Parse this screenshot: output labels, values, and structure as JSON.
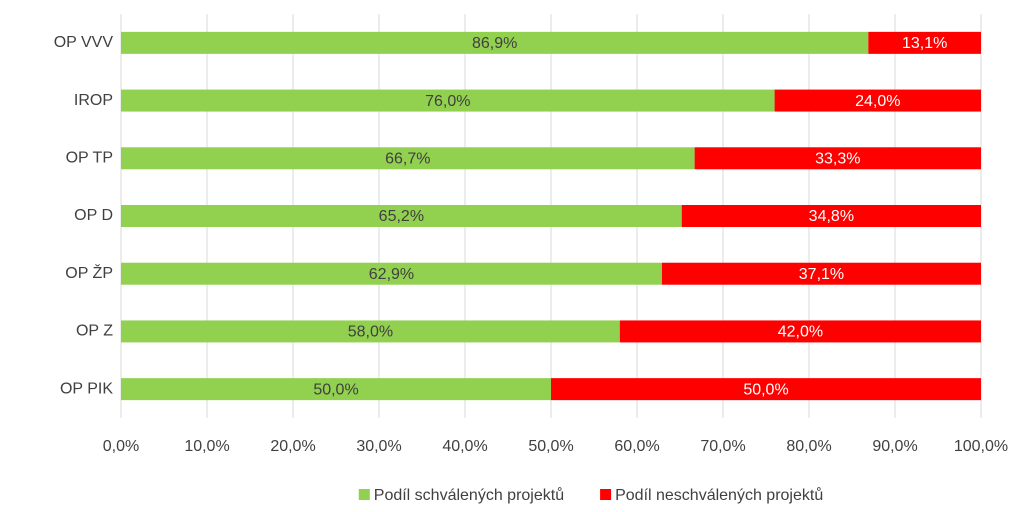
{
  "chart_data": {
    "type": "bar",
    "orientation": "horizontal",
    "stacked": true,
    "categories": [
      "OP VVV",
      "IROP",
      "OP TP",
      "OP D",
      "OP ŽP",
      "OP Z",
      "OP PIK"
    ],
    "series": [
      {
        "name": "Podíl schválených projektů",
        "color": "#92d050",
        "label_color": "#404040",
        "values": [
          86.9,
          76.0,
          66.7,
          65.2,
          62.9,
          58.0,
          50.0
        ],
        "value_labels": [
          "86,9%",
          "76,0%",
          "66,7%",
          "65,2%",
          "62,9%",
          "58,0%",
          "50,0%"
        ]
      },
      {
        "name": "Podíl neschválených projektů",
        "color": "#ff0000",
        "label_color": "#ffffff",
        "values": [
          13.1,
          24.0,
          33.3,
          34.8,
          37.1,
          42.0,
          50.0
        ],
        "value_labels": [
          "13,1%",
          "24,0%",
          "33,3%",
          "34,8%",
          "37,1%",
          "42,0%",
          "50,0%"
        ]
      }
    ],
    "xlim": [
      0,
      100
    ],
    "xticks": [
      {
        "value": 0,
        "label": "0,0%"
      },
      {
        "value": 10,
        "label": "10,0%"
      },
      {
        "value": 20,
        "label": "20,0%"
      },
      {
        "value": 30,
        "label": "30,0%"
      },
      {
        "value": 40,
        "label": "40,0%"
      },
      {
        "value": 50,
        "label": "50,0%"
      },
      {
        "value": 60,
        "label": "60,0%"
      },
      {
        "value": 70,
        "label": "70,0%"
      },
      {
        "value": 80,
        "label": "80,0%"
      },
      {
        "value": 90,
        "label": "90,0%"
      },
      {
        "value": 100,
        "label": "100,0%"
      }
    ],
    "grid": true,
    "legend": "bottom"
  }
}
